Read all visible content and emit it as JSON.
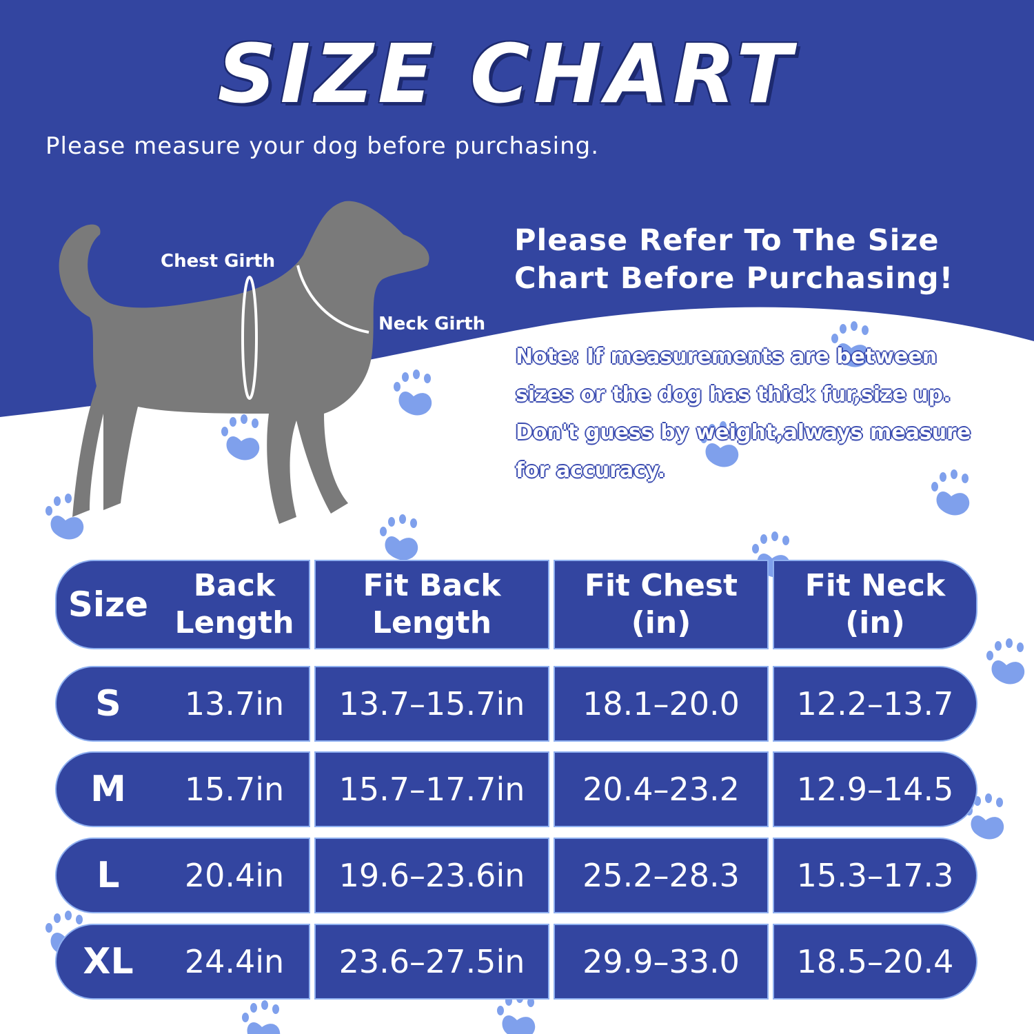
{
  "header": {
    "title": "SIZE CHART",
    "subtitle": "Please measure your dog before purchasing."
  },
  "diagram": {
    "labels": [
      "Chest Girth",
      "Neck Girth"
    ]
  },
  "callout": {
    "heading": [
      "Please Refer To The Size",
      "Chart Before Purchasing!"
    ],
    "note": [
      "Note: If measurements are between",
      "sizes or the dog has thick fur,size up.",
      "Don't guess by weight,always measure",
      "for accuracy."
    ]
  },
  "table": {
    "header": [
      "Size",
      "Back Length",
      "Fit Back Length",
      "Fit Chest (in)",
      "Fit Neck (in)"
    ],
    "rows": [
      [
        "S",
        "13.7in",
        "13.7–15.7in",
        "18.1–20.0",
        "12.2–13.7"
      ],
      [
        "M",
        "15.7in",
        "15.7–17.7in",
        "20.4–23.2",
        "12.9–14.5"
      ],
      [
        "L",
        "20.4in",
        "19.6–23.6in",
        "25.2–28.3",
        "15.3–17.3"
      ],
      [
        "XL",
        "24.4in",
        "23.6–27.5in",
        "29.9–33.0",
        "18.5–20.4"
      ]
    ]
  }
}
